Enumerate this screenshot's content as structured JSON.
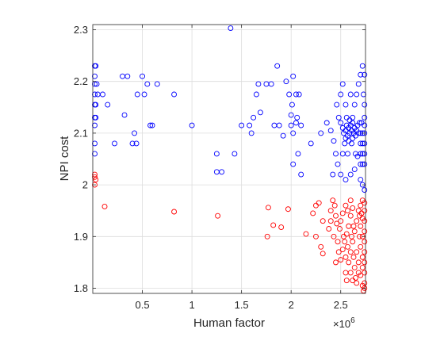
{
  "chart_data": {
    "type": "scatter",
    "title": "",
    "xlabel": "Human factor",
    "ylabel": "NPI cost",
    "x_exponent_label": "×10",
    "x_exponent_power": "6",
    "xlim": [
      0,
      2.75
    ],
    "ylim": [
      1.79,
      2.31
    ],
    "xticks": [
      0.5,
      1,
      1.5,
      2,
      2.5
    ],
    "xtick_labels": [
      "0.5",
      "1",
      "1.5",
      "2",
      "2.5"
    ],
    "yticks": [
      1.8,
      1.9,
      2.0,
      2.1,
      2.2,
      2.3
    ],
    "ytick_labels": [
      "1.8",
      "1.9",
      "2",
      "2.1",
      "2.2",
      "2.3"
    ],
    "grid": true,
    "marker": "open-circle",
    "x_units_note": "x values in units of 10^6",
    "series": [
      {
        "name": "blue",
        "color": "#0000ff",
        "points": [
          [
            0.02,
            2.23
          ],
          [
            0.03,
            2.23
          ],
          [
            0.02,
            2.21
          ],
          [
            0.02,
            2.195
          ],
          [
            0.04,
            2.195
          ],
          [
            0.02,
            2.175
          ],
          [
            0.05,
            2.175
          ],
          [
            0.02,
            2.155
          ],
          [
            0.03,
            2.155
          ],
          [
            0.02,
            2.13
          ],
          [
            0.03,
            2.13
          ],
          [
            0.02,
            2.115
          ],
          [
            0.02,
            2.08
          ],
          [
            0.02,
            2.06
          ],
          [
            0.1,
            2.175
          ],
          [
            0.3,
            2.21
          ],
          [
            0.35,
            2.21
          ],
          [
            0.5,
            2.21
          ],
          [
            0.45,
            2.175
          ],
          [
            0.52,
            2.175
          ],
          [
            0.55,
            2.195
          ],
          [
            0.65,
            2.195
          ],
          [
            0.82,
            2.175
          ],
          [
            0.15,
            2.155
          ],
          [
            0.32,
            2.135
          ],
          [
            0.42,
            2.1
          ],
          [
            0.22,
            2.08
          ],
          [
            0.4,
            2.08
          ],
          [
            0.44,
            2.08
          ],
          [
            0.58,
            2.115
          ],
          [
            0.6,
            2.115
          ],
          [
            1.0,
            2.115
          ],
          [
            1.39,
            2.303
          ],
          [
            1.25,
            2.06
          ],
          [
            1.43,
            2.06
          ],
          [
            1.25,
            2.025
          ],
          [
            1.3,
            2.025
          ],
          [
            1.67,
            2.195
          ],
          [
            1.75,
            2.195
          ],
          [
            1.8,
            2.195
          ],
          [
            1.65,
            2.175
          ],
          [
            1.62,
            2.13
          ],
          [
            1.69,
            2.14
          ],
          [
            1.58,
            2.115
          ],
          [
            1.5,
            2.115
          ],
          [
            1.6,
            2.1
          ],
          [
            1.83,
            2.115
          ],
          [
            1.86,
            2.23
          ],
          [
            1.88,
            2.115
          ],
          [
            1.92,
            2.095
          ],
          [
            1.95,
            2.2
          ],
          [
            2.02,
            2.21
          ],
          [
            2.05,
            2.175
          ],
          [
            1.98,
            2.175
          ],
          [
            2.01,
            2.155
          ],
          [
            2.08,
            2.175
          ],
          [
            2.0,
            2.135
          ],
          [
            2.06,
            2.13
          ],
          [
            2.0,
            2.115
          ],
          [
            2.02,
            2.1
          ],
          [
            2.05,
            2.12
          ],
          [
            2.1,
            2.115
          ],
          [
            2.02,
            2.04
          ],
          [
            2.07,
            2.06
          ],
          [
            2.1,
            2.02
          ],
          [
            2.2,
            2.08
          ],
          [
            2.3,
            2.1
          ],
          [
            2.36,
            2.12
          ],
          [
            2.4,
            2.105
          ],
          [
            2.43,
            2.085
          ],
          [
            2.45,
            2.06
          ],
          [
            2.42,
            2.02
          ],
          [
            2.47,
            2.04
          ],
          [
            2.5,
            2.02
          ],
          [
            2.55,
            2.01
          ],
          [
            2.6,
            2.02
          ],
          [
            2.64,
            2.03
          ],
          [
            2.7,
            2.01
          ],
          [
            2.72,
            2.0
          ],
          [
            2.74,
            1.99
          ],
          [
            2.67,
            2.055
          ],
          [
            2.46,
            2.155
          ],
          [
            2.5,
            2.175
          ],
          [
            2.52,
            2.195
          ],
          [
            2.55,
            2.155
          ],
          [
            2.6,
            2.175
          ],
          [
            2.62,
            2.13
          ],
          [
            2.64,
            2.155
          ],
          [
            2.66,
            2.175
          ],
          [
            2.68,
            2.195
          ],
          [
            2.7,
            2.213
          ],
          [
            2.72,
            2.23
          ],
          [
            2.74,
            2.213
          ],
          [
            2.73,
            2.175
          ],
          [
            2.74,
            2.155
          ],
          [
            2.74,
            2.13
          ],
          [
            2.74,
            2.115
          ],
          [
            2.74,
            2.1
          ],
          [
            2.74,
            2.08
          ],
          [
            2.74,
            2.06
          ],
          [
            2.74,
            2.04
          ],
          [
            2.48,
            2.13
          ],
          [
            2.5,
            2.12
          ],
          [
            2.52,
            2.11
          ],
          [
            2.53,
            2.1
          ],
          [
            2.55,
            2.105
          ],
          [
            2.56,
            2.115
          ],
          [
            2.57,
            2.095
          ],
          [
            2.58,
            2.11
          ],
          [
            2.59,
            2.1
          ],
          [
            2.6,
            2.115
          ],
          [
            2.61,
            2.105
          ],
          [
            2.62,
            2.09
          ],
          [
            2.63,
            2.1
          ],
          [
            2.64,
            2.11
          ],
          [
            2.65,
            2.095
          ],
          [
            2.66,
            2.105
          ],
          [
            2.67,
            2.115
          ],
          [
            2.55,
            2.09
          ],
          [
            2.58,
            2.085
          ],
          [
            2.61,
            2.08
          ],
          [
            2.54,
            2.08
          ],
          [
            2.62,
            2.12
          ],
          [
            2.59,
            2.125
          ],
          [
            2.56,
            2.13
          ],
          [
            2.68,
            2.1
          ],
          [
            2.69,
            2.12
          ],
          [
            2.7,
            2.1
          ],
          [
            2.71,
            2.12
          ],
          [
            2.72,
            2.1
          ],
          [
            2.7,
            2.08
          ],
          [
            2.72,
            2.08
          ],
          [
            2.72,
            2.06
          ],
          [
            2.7,
            2.06
          ],
          [
            2.7,
            2.04
          ],
          [
            2.72,
            2.04
          ],
          [
            2.65,
            2.06
          ],
          [
            2.57,
            2.06
          ],
          [
            2.52,
            2.06
          ]
        ]
      },
      {
        "name": "red",
        "color": "#ff0000",
        "points": [
          [
            0.02,
            2.02
          ],
          [
            0.02,
            2.015
          ],
          [
            0.03,
            2.01
          ],
          [
            0.02,
            2.0
          ],
          [
            0.12,
            1.958
          ],
          [
            0.82,
            1.948
          ],
          [
            1.26,
            1.94
          ],
          [
            1.77,
            1.956
          ],
          [
            1.82,
            1.922
          ],
          [
            1.9,
            1.918
          ],
          [
            1.76,
            1.9
          ],
          [
            2.15,
            1.905
          ],
          [
            1.97,
            1.953
          ],
          [
            2.22,
            1.945
          ],
          [
            2.25,
            1.96
          ],
          [
            2.28,
            1.965
          ],
          [
            2.32,
            1.93
          ],
          [
            2.25,
            1.9
          ],
          [
            2.3,
            1.88
          ],
          [
            2.32,
            1.867
          ],
          [
            2.38,
            1.915
          ],
          [
            2.4,
            1.93
          ],
          [
            2.4,
            1.95
          ],
          [
            2.42,
            1.97
          ],
          [
            2.44,
            1.96
          ],
          [
            2.45,
            1.94
          ],
          [
            2.46,
            1.925
          ],
          [
            2.43,
            1.9
          ],
          [
            2.47,
            1.89
          ],
          [
            2.49,
            1.915
          ],
          [
            2.5,
            1.93
          ],
          [
            2.52,
            1.945
          ],
          [
            2.55,
            1.96
          ],
          [
            2.48,
            1.87
          ],
          [
            2.45,
            1.85
          ],
          [
            2.5,
            1.855
          ],
          [
            2.52,
            1.875
          ],
          [
            2.54,
            1.89
          ],
          [
            2.56,
            1.905
          ],
          [
            2.58,
            1.92
          ],
          [
            2.6,
            1.94
          ],
          [
            2.62,
            1.955
          ],
          [
            2.6,
            1.97
          ],
          [
            2.57,
            1.88
          ],
          [
            2.6,
            1.87
          ],
          [
            2.62,
            1.89
          ],
          [
            2.64,
            1.91
          ],
          [
            2.66,
            1.93
          ],
          [
            2.68,
            1.95
          ],
          [
            2.66,
            1.87
          ],
          [
            2.68,
            1.85
          ],
          [
            2.64,
            1.84
          ],
          [
            2.6,
            1.83
          ],
          [
            2.58,
            1.85
          ],
          [
            2.55,
            1.83
          ],
          [
            2.56,
            1.815
          ],
          [
            2.62,
            1.815
          ],
          [
            2.66,
            1.81
          ],
          [
            2.7,
            1.825
          ],
          [
            2.7,
            1.88
          ],
          [
            2.72,
            1.9
          ],
          [
            2.7,
            1.92
          ],
          [
            2.72,
            1.935
          ],
          [
            2.7,
            1.96
          ],
          [
            2.72,
            1.97
          ],
          [
            2.74,
            1.965
          ],
          [
            2.74,
            1.95
          ],
          [
            2.74,
            1.93
          ],
          [
            2.74,
            1.91
          ],
          [
            2.74,
            1.89
          ],
          [
            2.74,
            1.87
          ],
          [
            2.74,
            1.85
          ],
          [
            2.74,
            1.83
          ],
          [
            2.74,
            1.81
          ],
          [
            2.74,
            1.8
          ],
          [
            2.73,
            1.795
          ],
          [
            2.72,
            1.805
          ],
          [
            2.72,
            1.84
          ],
          [
            2.72,
            1.86
          ],
          [
            2.68,
            1.83
          ],
          [
            2.65,
            1.82
          ],
          [
            2.63,
            1.86
          ],
          [
            2.61,
            1.9
          ],
          [
            2.55,
            1.86
          ],
          [
            2.53,
            1.9
          ],
          [
            2.57,
            1.95
          ],
          [
            2.63,
            1.92
          ],
          [
            2.69,
            1.9
          ],
          [
            2.71,
            1.945
          ],
          [
            2.69,
            1.94
          ]
        ]
      }
    ]
  }
}
